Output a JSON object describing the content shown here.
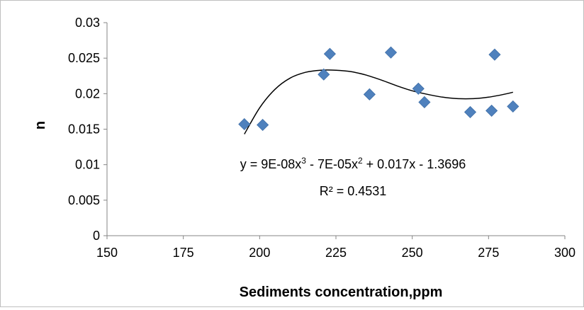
{
  "chart_data": {
    "type": "scatter",
    "title": "",
    "xlabel": "Sediments concentration,ppm",
    "ylabel": "n",
    "xlim": [
      150,
      300
    ],
    "ylim": [
      0,
      0.03
    ],
    "x_ticks": [
      150,
      175,
      200,
      225,
      250,
      275,
      300
    ],
    "y_ticks": [
      0,
      0.005,
      0.01,
      0.015,
      0.02,
      0.025,
      0.03
    ],
    "x_tick_labels": [
      "150",
      "175",
      "200",
      "225",
      "250",
      "275",
      "300"
    ],
    "y_tick_labels": [
      "0",
      "0.005",
      "0.01",
      "0.015",
      "0.02",
      "0.025",
      "0.03"
    ],
    "grid": false,
    "legend": "none",
    "marker_color": "#4F81BD",
    "marker_shape": "diamond",
    "series": [
      {
        "x": [
          195,
          201,
          221,
          223,
          236,
          243,
          252,
          254,
          269,
          276,
          277,
          283
        ],
        "y": [
          0.0157,
          0.0156,
          0.0227,
          0.0256,
          0.0199,
          0.0258,
          0.0207,
          0.0188,
          0.0174,
          0.0176,
          0.0255,
          0.0182
        ]
      }
    ],
    "trendline": {
      "type": "polynomial-3",
      "color": "#000000",
      "x_range": [
        195,
        283
      ],
      "fit_points": {
        "x": [
          195,
          200,
          205,
          210,
          215,
          220,
          225,
          230,
          235,
          240,
          245,
          250,
          255,
          260,
          265,
          270,
          275,
          280,
          283
        ],
        "y": [
          0.0143,
          0.018,
          0.0206,
          0.0222,
          0.023,
          0.0233,
          0.0233,
          0.0231,
          0.0226,
          0.0219,
          0.0211,
          0.0204,
          0.0199,
          0.0195,
          0.0193,
          0.0193,
          0.0195,
          0.0199,
          0.0202
        ]
      },
      "equation_parts": [
        "y = 9E-08x",
        "3",
        " - 7E-05x",
        "2",
        " + 0.017x - 1.3696"
      ],
      "r_squared_label": "R² = 0.4531"
    }
  }
}
